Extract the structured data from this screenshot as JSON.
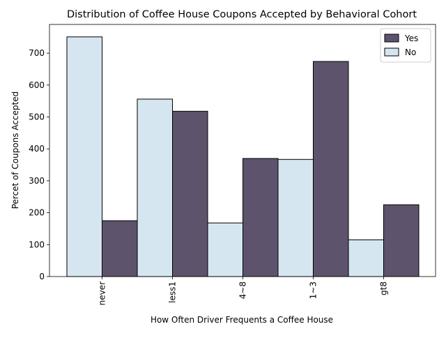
{
  "chart_data": {
    "type": "bar",
    "title": "Distribution of Coffee House Coupons Accepted by Behavioral Cohort",
    "xlabel": "How Often Driver Frequents a Coffee House",
    "ylabel": "Percet of Coupons Accepted",
    "categories": [
      "never",
      "less1",
      "4~8",
      "1~3",
      "gt8"
    ],
    "series": [
      {
        "name": "Yes",
        "color": "#5e536c",
        "values": [
          175,
          518,
          370,
          674,
          225
        ]
      },
      {
        "name": "No",
        "color": "#d5e6f0",
        "values": [
          751,
          556,
          168,
          367,
          115
        ]
      }
    ],
    "ylim": [
      0,
      790
    ],
    "yticks": [
      0,
      100,
      200,
      300,
      400,
      500,
      600,
      700
    ],
    "grid": false,
    "legend_position": "top-right"
  }
}
